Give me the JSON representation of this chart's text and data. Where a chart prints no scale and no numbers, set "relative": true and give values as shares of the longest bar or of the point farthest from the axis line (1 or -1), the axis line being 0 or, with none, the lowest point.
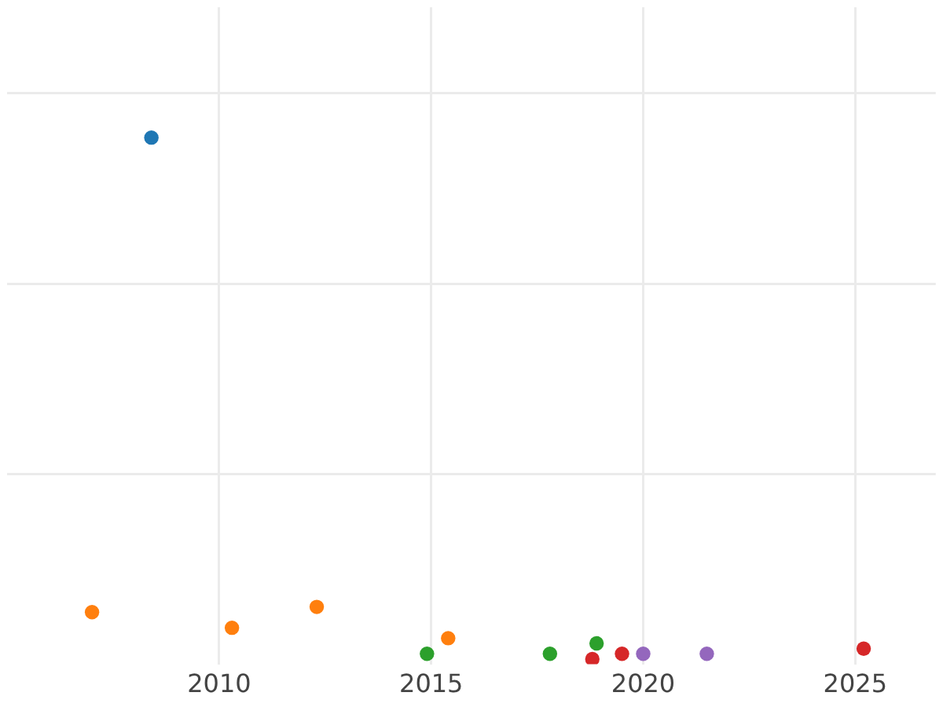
{
  "chart_data": {
    "type": "scatter",
    "relative": true,
    "grid": true,
    "marker": "circle",
    "xlim": [
      2005,
      2026.9
    ],
    "xticks": [
      2010,
      2015,
      2020,
      2025
    ],
    "series": [
      {
        "color": "#1f77b4",
        "x": [
          2008.4
        ],
        "values": [
          1
        ]
      },
      {
        "color": "#ff7f0e",
        "x": [
          2007.0,
          2010.3,
          2012.3,
          2015.4
        ],
        "values": [
          0.09,
          0.06,
          0.1,
          0.04
        ]
      },
      {
        "color": "#2ca02c",
        "x": [
          2014.9,
          2017.8,
          2018.9
        ],
        "values": [
          0.01,
          0.01,
          0.03
        ]
      },
      {
        "color": "#d62728",
        "x": [
          2018.8,
          2019.5,
          2025.2
        ],
        "values": [
          0,
          0.01,
          0.02
        ]
      },
      {
        "color": "#9467bd",
        "x": [
          2020.0,
          2021.5
        ],
        "values": [
          0.01,
          0.01
        ]
      }
    ]
  }
}
